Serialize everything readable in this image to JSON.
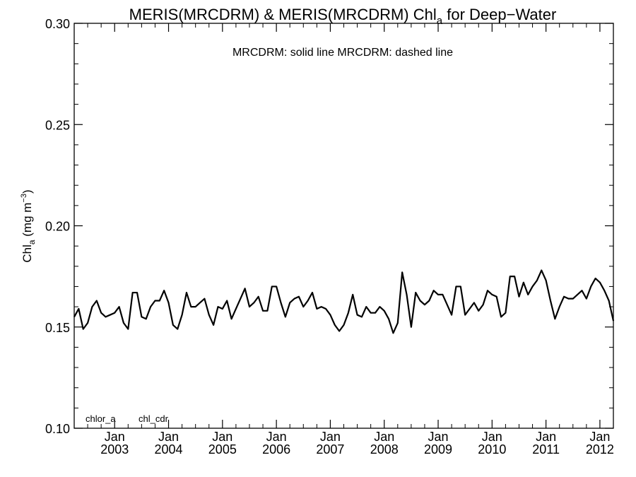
{
  "chart_data": {
    "type": "line",
    "title_main": "MERIS(MRCDRM) & MERIS(MRCDRM)  Chl",
    "title_sub": "a",
    "title_tail": " for Deep−Water",
    "ylabel_main": "Chl",
    "ylabel_sub": "a",
    "ylabel_unit": " (mg m",
    "ylabel_sup": "−3",
    "ylabel_close": ")",
    "legend_note": "MRCDRM: solid line   MRCDRM: dashed line",
    "corner_labels": [
      "chlor_a",
      "chl_cdr"
    ],
    "ylim": [
      0.1,
      0.3
    ],
    "yticks": [
      "0.10",
      "0.15",
      "0.20",
      "0.25",
      "0.30"
    ],
    "xlim": [
      "2002-04",
      "2012-04"
    ],
    "xticks": [
      {
        "month": "Jan",
        "year": "2003",
        "date": "2003-01"
      },
      {
        "month": "Jan",
        "year": "2004",
        "date": "2004-01"
      },
      {
        "month": "Jan",
        "year": "2005",
        "date": "2005-01"
      },
      {
        "month": "Jan",
        "year": "2006",
        "date": "2006-01"
      },
      {
        "month": "Jan",
        "year": "2007",
        "date": "2007-01"
      },
      {
        "month": "Jan",
        "year": "2008",
        "date": "2008-01"
      },
      {
        "month": "Jan",
        "year": "2009",
        "date": "2009-01"
      },
      {
        "month": "Jan",
        "year": "2010",
        "date": "2010-01"
      },
      {
        "month": "Jan",
        "year": "2011",
        "date": "2011-01"
      },
      {
        "month": "Jan",
        "year": "2012",
        "date": "2012-01"
      }
    ],
    "series": [
      {
        "style": "solid",
        "color": "#000000",
        "x": [
          "2002-04",
          "2002-05",
          "2002-06",
          "2002-07",
          "2002-08",
          "2002-09",
          "2002-10",
          "2002-11",
          "2002-12",
          "2003-01",
          "2003-02",
          "2003-03",
          "2003-04",
          "2003-05",
          "2003-06",
          "2003-07",
          "2003-08",
          "2003-09",
          "2003-10",
          "2003-11",
          "2003-12",
          "2004-01",
          "2004-02",
          "2004-03",
          "2004-04",
          "2004-05",
          "2004-06",
          "2004-07",
          "2004-08",
          "2004-09",
          "2004-10",
          "2004-11",
          "2004-12",
          "2005-01",
          "2005-02",
          "2005-03",
          "2005-04",
          "2005-05",
          "2005-06",
          "2005-07",
          "2005-08",
          "2005-09",
          "2005-10",
          "2005-11",
          "2005-12",
          "2006-01",
          "2006-02",
          "2006-03",
          "2006-04",
          "2006-05",
          "2006-06",
          "2006-07",
          "2006-08",
          "2006-09",
          "2006-10",
          "2006-11",
          "2006-12",
          "2007-01",
          "2007-02",
          "2007-03",
          "2007-04",
          "2007-05",
          "2007-06",
          "2007-07",
          "2007-08",
          "2007-09",
          "2007-10",
          "2007-11",
          "2007-12",
          "2008-01",
          "2008-02",
          "2008-03",
          "2008-04",
          "2008-05",
          "2008-06",
          "2008-07",
          "2008-08",
          "2008-09",
          "2008-10",
          "2008-11",
          "2008-12",
          "2009-01",
          "2009-02",
          "2009-03",
          "2009-04",
          "2009-05",
          "2009-06",
          "2009-07",
          "2009-08",
          "2009-09",
          "2009-10",
          "2009-11",
          "2009-12",
          "2010-01",
          "2010-02",
          "2010-03",
          "2010-04",
          "2010-05",
          "2010-06",
          "2010-07",
          "2010-08",
          "2010-09",
          "2010-10",
          "2010-11",
          "2010-12",
          "2011-01",
          "2011-02",
          "2011-03",
          "2011-04",
          "2011-05",
          "2011-06",
          "2011-07",
          "2011-08",
          "2011-09",
          "2011-10",
          "2011-11",
          "2011-12",
          "2012-01",
          "2012-02",
          "2012-03",
          "2012-04"
        ],
        "y": [
          0.155,
          0.159,
          0.149,
          0.152,
          0.16,
          0.163,
          0.157,
          0.155,
          0.156,
          0.157,
          0.16,
          0.152,
          0.149,
          0.167,
          0.167,
          0.155,
          0.154,
          0.16,
          0.163,
          0.163,
          0.168,
          0.162,
          0.151,
          0.149,
          0.156,
          0.167,
          0.16,
          0.16,
          0.162,
          0.164,
          0.156,
          0.151,
          0.16,
          0.159,
          0.163,
          0.154,
          0.159,
          0.164,
          0.169,
          0.16,
          0.162,
          0.165,
          0.158,
          0.158,
          0.17,
          0.17,
          0.162,
          0.155,
          0.162,
          0.164,
          0.165,
          0.16,
          0.163,
          0.167,
          0.159,
          0.16,
          0.159,
          0.156,
          0.151,
          0.148,
          0.151,
          0.157,
          0.166,
          0.156,
          0.155,
          0.16,
          0.157,
          0.157,
          0.16,
          0.158,
          0.154,
          0.147,
          0.152,
          0.177,
          0.166,
          0.15,
          0.167,
          0.163,
          0.161,
          0.163,
          0.168,
          0.166,
          0.166,
          0.161,
          0.156,
          0.17,
          0.17,
          0.156,
          0.159,
          0.162,
          0.158,
          0.161,
          0.168,
          0.166,
          0.165,
          0.155,
          0.157,
          0.175,
          0.175,
          0.165,
          0.172,
          0.166,
          0.17,
          0.173,
          0.178,
          0.173,
          0.163,
          0.154,
          0.16,
          0.165,
          0.164,
          0.164,
          0.166,
          0.168,
          0.164,
          0.17,
          0.174,
          0.172,
          0.168,
          0.163,
          0.153
        ]
      }
    ]
  }
}
